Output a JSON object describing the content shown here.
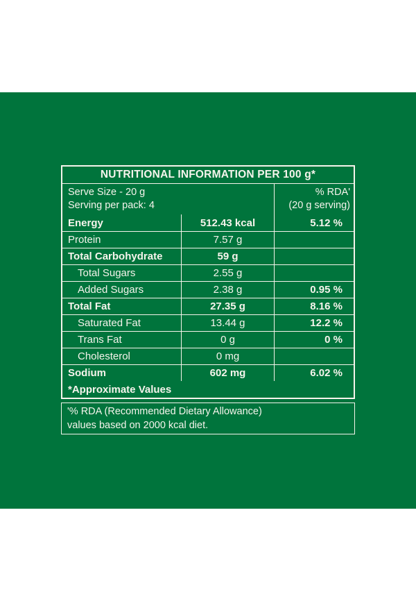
{
  "colors": {
    "page_background": "#ffffff",
    "panel_green": "#00743C",
    "ink": "#F6F4EC"
  },
  "table": {
    "title": "NUTRITIONAL INFORMATION PER 100 g*",
    "serve_info": {
      "line1": "Serve Size - 20 g",
      "line2": "Serving per pack: 4"
    },
    "rda_header": {
      "line1": "% RDA'",
      "line2": "(20 g serving)"
    },
    "rows": [
      {
        "label": "Energy",
        "amount": "512.43 kcal",
        "rda": "5.12 %",
        "bold": true,
        "indent": false
      },
      {
        "label": "Protein",
        "amount": "7.57 g",
        "rda": "",
        "bold": false,
        "indent": false
      },
      {
        "label": "Total Carbohydrate",
        "amount": "59 g",
        "rda": "",
        "bold": true,
        "indent": false
      },
      {
        "label": "Total Sugars",
        "amount": "2.55 g",
        "rda": "",
        "bold": false,
        "indent": true
      },
      {
        "label": "Added Sugars",
        "amount": "2.38 g",
        "rda": "0.95 %",
        "bold": false,
        "indent": true
      },
      {
        "label": "Total Fat",
        "amount": "27.35 g",
        "rda": "8.16 %",
        "bold": true,
        "indent": false
      },
      {
        "label": "Saturated Fat",
        "amount": "13.44 g",
        "rda": "12.2 %",
        "bold": false,
        "indent": true
      },
      {
        "label": "Trans Fat",
        "amount": "0 g",
        "rda": "0 %",
        "bold": false,
        "indent": true
      },
      {
        "label": "Cholesterol",
        "amount": "0 mg",
        "rda": "",
        "bold": false,
        "indent": true
      },
      {
        "label": "Sodium",
        "amount": "602 mg",
        "rda": "6.02 %",
        "bold": true,
        "indent": false
      }
    ],
    "footer_note": "*Approximate Values"
  },
  "footnote": {
    "line1": "'% RDA (Recommended Dietary Allowance)",
    "line2": "values based on 2000 kcal diet."
  }
}
